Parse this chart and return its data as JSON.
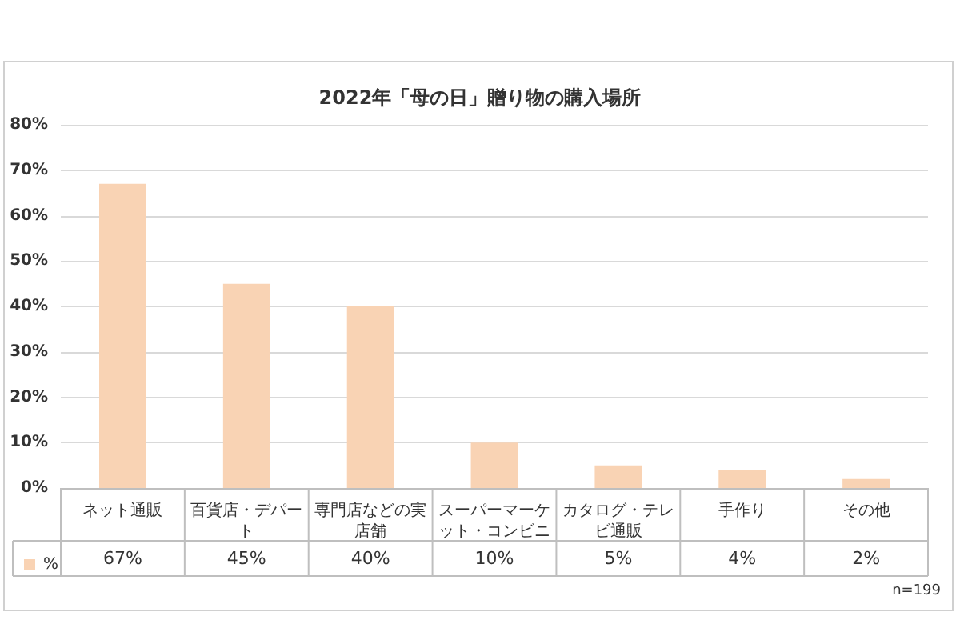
{
  "chart_data": {
    "type": "bar",
    "title": "2022年「母の日」贈り物の購入場所",
    "categories": [
      "ネット通販",
      "百貨店・デパート",
      "専門店などの実店舗",
      "スーパーマーケット・コンビニ",
      "カタログ・テレビ通販",
      "手作り",
      "その他"
    ],
    "series": [
      {
        "name": "%",
        "color": "#f9d3b4",
        "values": [
          67,
          45,
          40,
          10,
          5,
          4,
          2
        ],
        "value_labels": [
          "67%",
          "45%",
          "40%",
          "10%",
          "5%",
          "4%",
          "2%"
        ]
      }
    ],
    "ylim": [
      0,
      80
    ],
    "yticks": [
      {
        "value": 0,
        "label": "0%"
      },
      {
        "value": 10,
        "label": "10%"
      },
      {
        "value": 20,
        "label": "20%"
      },
      {
        "value": 30,
        "label": "30%"
      },
      {
        "value": 40,
        "label": "40%"
      },
      {
        "value": 50,
        "label": "50%"
      },
      {
        "value": 60,
        "label": "60%"
      },
      {
        "value": 70,
        "label": "70%"
      },
      {
        "value": 80,
        "label": "80%"
      }
    ],
    "grid": "y",
    "legend": "bottom left",
    "annotations": [
      "n=199"
    ]
  }
}
